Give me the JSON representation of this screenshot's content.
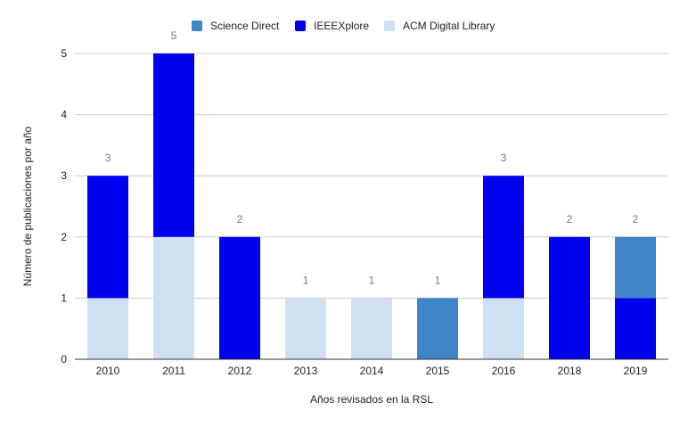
{
  "chart_data": {
    "type": "bar",
    "stacked": true,
    "categories": [
      "2010",
      "2011",
      "2012",
      "2013",
      "2014",
      "2015",
      "2016",
      "2018",
      "2019"
    ],
    "series": [
      {
        "name": "ACM Digital Library",
        "color": "#cfe0f3",
        "values": [
          1,
          2,
          0,
          1,
          1,
          0,
          1,
          0,
          0
        ]
      },
      {
        "name": "IEEEXplore",
        "color": "#0000f0",
        "values": [
          2,
          3,
          2,
          0,
          0,
          0,
          2,
          2,
          1
        ]
      },
      {
        "name": "Science Direct",
        "color": "#3d85c6",
        "values": [
          0,
          0,
          0,
          0,
          0,
          1,
          0,
          0,
          1
        ]
      }
    ],
    "totals": [
      "3",
      "5",
      "2",
      "1",
      "1",
      "1",
      "3",
      "2",
      "2"
    ],
    "ylim": [
      0,
      5
    ],
    "yticks": [
      "0",
      "1",
      "2",
      "3",
      "4",
      "5"
    ],
    "xlabel": "Años revisados en la RSL",
    "ylabel": "Número de publicaciones por año",
    "grid": true,
    "legend_position": "top"
  },
  "legend": [
    {
      "label": "Science Direct",
      "color": "#3d85c6"
    },
    {
      "label": "IEEEXplore",
      "color": "#0000f0"
    },
    {
      "label": "ACM Digital Library",
      "color": "#cfe0f3"
    }
  ]
}
